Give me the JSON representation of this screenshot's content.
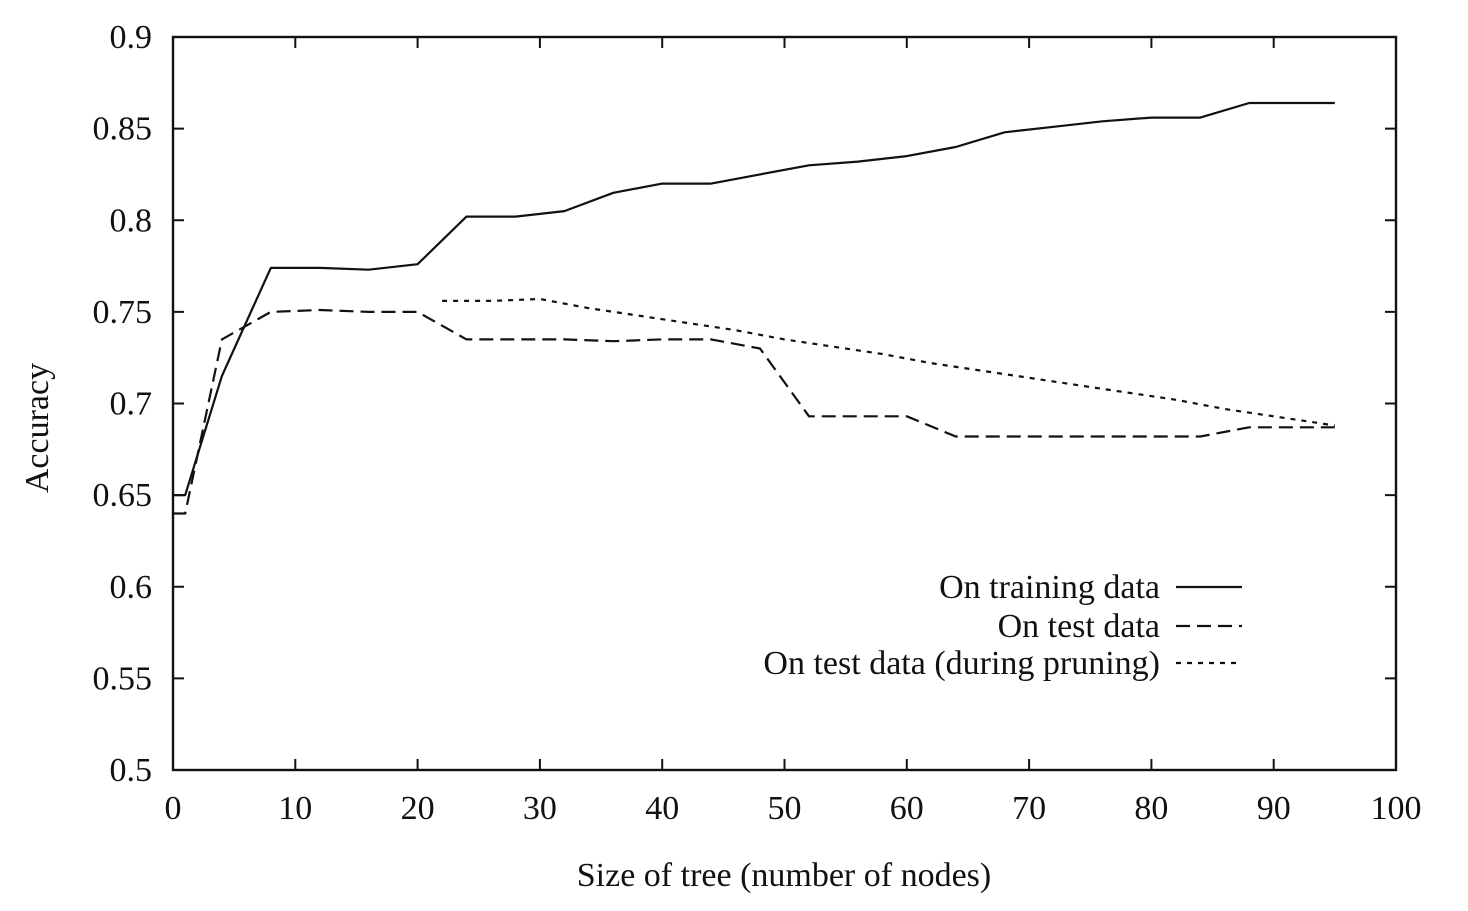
{
  "chart_data": {
    "type": "line",
    "xlabel": "Size of tree (number of nodes)",
    "ylabel": "Accuracy",
    "xlim": [
      0,
      100
    ],
    "ylim": [
      0.5,
      0.9
    ],
    "xticks": [
      0,
      10,
      20,
      30,
      40,
      50,
      60,
      70,
      80,
      90,
      100
    ],
    "yticks": [
      0.5,
      0.55,
      0.6,
      0.65,
      0.7,
      0.75,
      0.8,
      0.85,
      0.9
    ],
    "xtick_labels": [
      "0",
      "10",
      "20",
      "30",
      "40",
      "50",
      "60",
      "70",
      "80",
      "90",
      "100"
    ],
    "ytick_labels": [
      "0.5",
      "0.55",
      "0.6",
      "0.65",
      "0.7",
      "0.75",
      "0.8",
      "0.85",
      "0.9"
    ],
    "grid": false,
    "legend_position": "bottom-right",
    "series": [
      {
        "name": "On training data",
        "style": "solid",
        "color": "#111111",
        "points": [
          [
            0,
            0.65
          ],
          [
            1,
            0.65
          ],
          [
            4,
            0.715
          ],
          [
            8,
            0.774
          ],
          [
            12,
            0.774
          ],
          [
            16,
            0.773
          ],
          [
            20,
            0.776
          ],
          [
            24,
            0.802
          ],
          [
            28,
            0.802
          ],
          [
            32,
            0.805
          ],
          [
            36,
            0.815
          ],
          [
            40,
            0.82
          ],
          [
            44,
            0.82
          ],
          [
            48,
            0.825
          ],
          [
            52,
            0.83
          ],
          [
            56,
            0.832
          ],
          [
            60,
            0.835
          ],
          [
            64,
            0.84
          ],
          [
            68,
            0.848
          ],
          [
            72,
            0.851
          ],
          [
            76,
            0.854
          ],
          [
            80,
            0.856
          ],
          [
            84,
            0.856
          ],
          [
            88,
            0.864
          ],
          [
            92,
            0.864
          ],
          [
            95,
            0.864
          ]
        ]
      },
      {
        "name": "On test data",
        "style": "dashed",
        "color": "#111111",
        "points": [
          [
            0,
            0.64
          ],
          [
            1,
            0.64
          ],
          [
            4,
            0.735
          ],
          [
            8,
            0.75
          ],
          [
            12,
            0.751
          ],
          [
            16,
            0.75
          ],
          [
            20,
            0.75
          ],
          [
            24,
            0.735
          ],
          [
            28,
            0.735
          ],
          [
            32,
            0.735
          ],
          [
            36,
            0.734
          ],
          [
            40,
            0.735
          ],
          [
            44,
            0.735
          ],
          [
            48,
            0.73
          ],
          [
            52,
            0.693
          ],
          [
            56,
            0.693
          ],
          [
            60,
            0.693
          ],
          [
            64,
            0.682
          ],
          [
            68,
            0.682
          ],
          [
            72,
            0.682
          ],
          [
            76,
            0.682
          ],
          [
            80,
            0.682
          ],
          [
            84,
            0.682
          ],
          [
            88,
            0.687
          ],
          [
            92,
            0.687
          ],
          [
            95,
            0.687
          ]
        ]
      },
      {
        "name": "On test data (during pruning)",
        "style": "dotted",
        "color": "#111111",
        "points": [
          [
            22,
            0.756
          ],
          [
            26,
            0.756
          ],
          [
            30,
            0.757
          ],
          [
            34,
            0.752
          ],
          [
            38,
            0.748
          ],
          [
            42,
            0.744
          ],
          [
            46,
            0.74
          ],
          [
            50,
            0.735
          ],
          [
            54,
            0.731
          ],
          [
            58,
            0.727
          ],
          [
            62,
            0.722
          ],
          [
            66,
            0.718
          ],
          [
            70,
            0.714
          ],
          [
            74,
            0.71
          ],
          [
            78,
            0.706
          ],
          [
            82,
            0.702
          ],
          [
            86,
            0.697
          ],
          [
            90,
            0.693
          ],
          [
            95,
            0.688
          ]
        ]
      }
    ]
  }
}
